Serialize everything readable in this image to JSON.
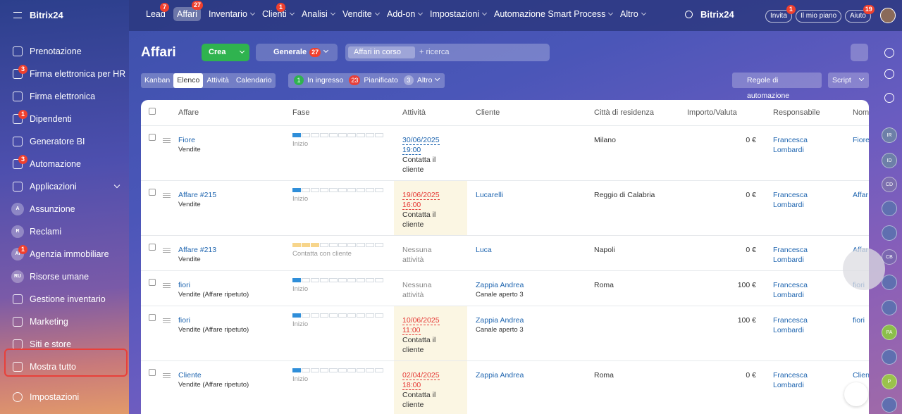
{
  "sidebar": {
    "brand": "Bitrix24",
    "items": [
      {
        "label": "Prenotazione"
      },
      {
        "label": "Firma elettronica per HR",
        "badge": 3
      },
      {
        "label": "Firma elettronica"
      },
      {
        "label": "Dipendenti",
        "badge": 1
      },
      {
        "label": "Generatore BI"
      },
      {
        "label": "Automazione",
        "badge": 3
      },
      {
        "label": "Applicazioni",
        "dropdown": true
      },
      {
        "label": "Assunzione",
        "icon": "A"
      },
      {
        "label": "Reclami",
        "icon": "R"
      },
      {
        "label": "Agenzia immobiliare",
        "icon": "AI",
        "badge": 1
      },
      {
        "label": "Risorse umane",
        "icon": "RU"
      },
      {
        "label": "Gestione inventario"
      },
      {
        "label": "Marketing"
      },
      {
        "label": "Siti e store"
      },
      {
        "label": "Mostra tutto",
        "highlighted": true,
        "highlight_color": "#e8403a"
      }
    ],
    "footer": "Impostazioni"
  },
  "topnav": {
    "items": [
      {
        "label": "Lead",
        "badge": 7
      },
      {
        "label": "Affari",
        "badge": 27,
        "active": true
      },
      {
        "label": "Inventario",
        "dropdown": true
      },
      {
        "label": "Clienti",
        "badge": 1,
        "dropdown": true
      },
      {
        "label": "Analisi",
        "dropdown": true
      },
      {
        "label": "Vendite",
        "dropdown": true
      },
      {
        "label": "Add-on",
        "dropdown": true
      },
      {
        "label": "Impostazioni",
        "dropdown": true
      },
      {
        "label": "Automazione Smart Process",
        "dropdown": true
      },
      {
        "label": "Altro",
        "dropdown": true
      }
    ],
    "brand": "Bitrix24",
    "buttons": [
      {
        "label": "Invita",
        "badge": 1
      },
      {
        "label": "Il mio piano"
      },
      {
        "label": "Aiuto",
        "badge": 19
      }
    ]
  },
  "toolbar": {
    "title": "Affari",
    "create": "Crea",
    "category": "Generale",
    "category_badge": 27,
    "filter_chip": "Affari in corso",
    "search_placeholder": "+ ricerca",
    "views": [
      "Kanban",
      "Elenco",
      "Attività",
      "Calendario"
    ],
    "active_view": 1,
    "counters": [
      {
        "count": 1,
        "label": "In ingresso",
        "color": "#2fb34f"
      },
      {
        "count": 23,
        "label": "Pianificato",
        "color": "#e8403a"
      },
      {
        "count": 3,
        "label": "Altro",
        "color": "rgba(255,255,255,0.35)",
        "dropdown": true
      }
    ],
    "automation": "Regole di automazione",
    "script": "Script"
  },
  "table": {
    "columns": [
      "Affare",
      "Fase",
      "Attività",
      "Cliente",
      "Città di residenza",
      "Importo/Valuta",
      "Responsabile",
      "Nom"
    ],
    "rows": [
      {
        "name": "Fiore",
        "pipeline": "Vendite",
        "stage": "Inizio",
        "stage_level": 1,
        "stage_color": "#2f8ed9",
        "activity_date": "30/06/2025",
        "activity_time": "19:00",
        "activity_text": "Contatta il cliente",
        "date_color": "#2066b0",
        "highlight": null,
        "client": null,
        "client_sub": null,
        "city": "Milano",
        "amount": "0 €",
        "owner": "Francesca Lombardi",
        "nom": "Fiore"
      },
      {
        "name": "Affare #215",
        "pipeline": "Vendite",
        "stage": "Inizio",
        "stage_level": 1,
        "stage_color": "#2f8ed9",
        "activity_date": "19/06/2025",
        "activity_time": "16:00",
        "activity_text": "Contatta il cliente",
        "date_color": "#e53935",
        "highlight": "#fbf6e3",
        "client": "Lucarelli",
        "client_sub": null,
        "city": "Reggio di Calabria",
        "amount": "0 €",
        "owner": "Francesca Lombardi",
        "nom": "Affar"
      },
      {
        "name": "Affare #213",
        "pipeline": "Vendite",
        "stage": "Contatta con cliente",
        "stage_level": 3,
        "stage_color": "#f7d58b",
        "activity_none": "Nessuna attività",
        "highlight": null,
        "client": "Luca",
        "client_sub": null,
        "city": "Napoli",
        "amount": "0 €",
        "owner": "Francesca Lombardi",
        "nom": "Affar"
      },
      {
        "name": "fiori",
        "pipeline": "Vendite (Affare ripetuto)",
        "stage": "Inizio",
        "stage_level": 1,
        "stage_color": "#2f8ed9",
        "activity_none": "Nessuna attività",
        "highlight": null,
        "client": "Zappia Andrea",
        "client_sub": "Canale aperto 3",
        "city": "Roma",
        "amount": "100 €",
        "owner": "Francesca Lombardi",
        "nom": "fiori"
      },
      {
        "name": "fiori",
        "pipeline": "Vendite (Affare ripetuto)",
        "stage": "Inizio",
        "stage_level": 1,
        "stage_color": "#2f8ed9",
        "activity_date": "10/06/2025",
        "activity_time": "11:00",
        "activity_text": "Contatta il cliente",
        "date_color": "#e53935",
        "highlight": "#fbf6e3",
        "client": "Zappia Andrea",
        "client_sub": "Canale aperto 3",
        "city": null,
        "amount": "100 €",
        "owner": "Francesca Lombardi",
        "nom": "fiori"
      },
      {
        "name": "Cliente",
        "pipeline": "Vendite (Affare ripetuto)",
        "stage": "Inizio",
        "stage_level": 1,
        "stage_color": "#2f8ed9",
        "activity_date": "02/04/2025",
        "activity_time": "18:00",
        "activity_text": "Contatta il cliente",
        "date_color": "#e53935",
        "highlight": "#fbf6e3",
        "client": "Zappia Andrea",
        "client_sub": null,
        "city": "Roma",
        "amount": "0 €",
        "owner": "Francesca Lombardi",
        "nom": "Clien"
      }
    ]
  },
  "rail": {
    "avatars": [
      {
        "label": "IR",
        "color": "#6d7fa8"
      },
      {
        "label": "ID",
        "color": "#6d7fa8"
      },
      {
        "label": "CD",
        "color": "#7c6fae"
      },
      {
        "label": "CB",
        "color": "#7b67b0"
      },
      {
        "label": "PA",
        "color": "#8bbf4a"
      },
      {
        "label": "P",
        "color": "#9ac24c"
      }
    ]
  }
}
